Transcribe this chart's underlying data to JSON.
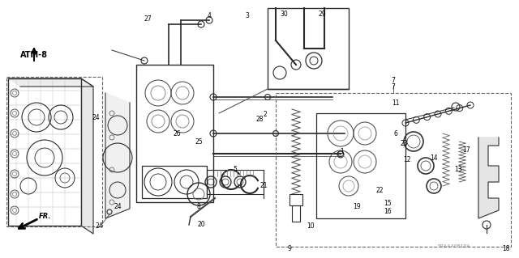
{
  "fig_width": 6.4,
  "fig_height": 3.19,
  "dpi": 100,
  "bg_color": "#f5f5f0",
  "line_color": "#2a2a2a",
  "light_line": "#888888",
  "atm_label": "ATM-8",
  "fr_label": "FR.",
  "watermark": "S9AAA0810A",
  "label_fs": 5.5
}
